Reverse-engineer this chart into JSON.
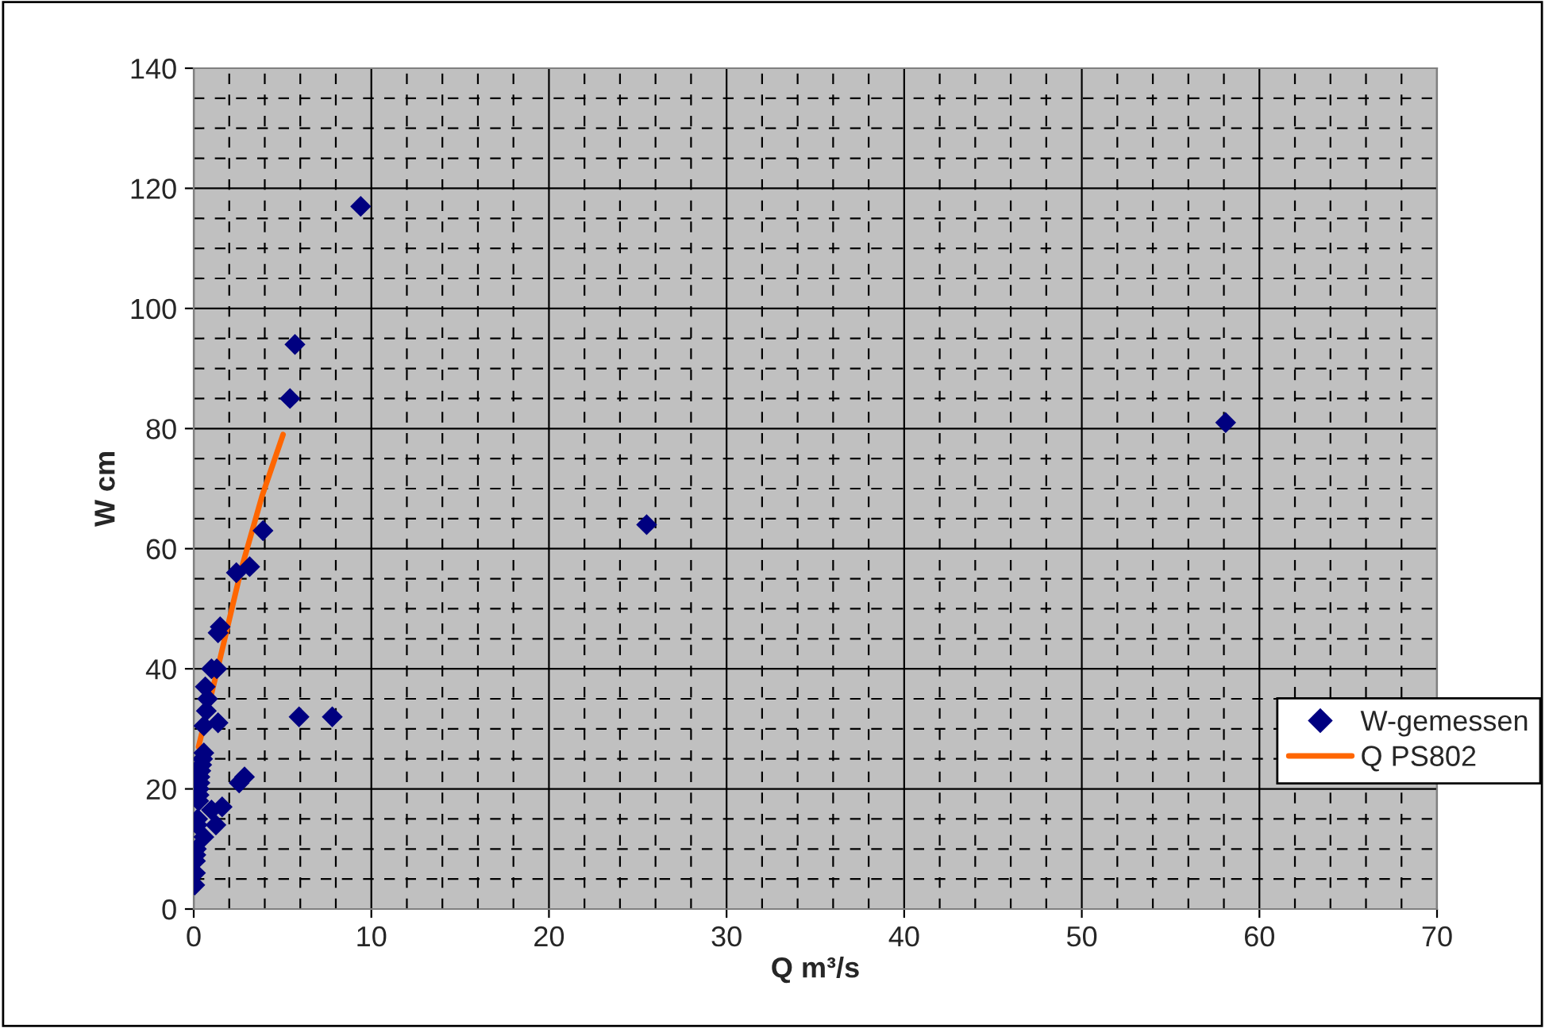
{
  "chart_data": {
    "type": "scatter",
    "xlabel": "Q m³/s",
    "ylabel": "W cm",
    "xlim": [
      0,
      70
    ],
    "xticks": [
      0,
      10,
      20,
      30,
      40,
      50,
      60,
      70
    ],
    "ylim": [
      0,
      140
    ],
    "yticks": [
      0,
      20,
      40,
      60,
      80,
      100,
      120,
      140
    ],
    "grid": true,
    "legend": "right",
    "series": [
      {
        "name": "W-gemessen",
        "marker": "diamond",
        "color": "#000080",
        "x": [
          0.06,
          0.1,
          0.1,
          0.12,
          0.15,
          0.2,
          0.22,
          0.28,
          0.3,
          0.3,
          0.35,
          0.35,
          0.4,
          0.45,
          0.5,
          0.57,
          0.65,
          0.71,
          0.78,
          0.57,
          1.0,
          1.3,
          1.37,
          1.37,
          1.49,
          2.4,
          3.15,
          3.9,
          5.42,
          5.7,
          9.4,
          5.93,
          7.8,
          2.86,
          2.56,
          1.6,
          1.25,
          1.0,
          0.57,
          25.5,
          58.1
        ],
        "values": [
          4,
          6,
          8,
          9,
          10,
          14,
          15,
          18,
          19,
          20,
          21,
          22,
          23,
          24,
          25,
          26,
          37,
          33,
          35,
          30.5,
          40,
          40,
          46,
          31,
          47,
          56,
          57,
          63,
          85,
          94,
          117,
          32,
          32,
          22,
          21,
          17,
          14,
          16.5,
          12,
          64,
          81
        ]
      },
      {
        "name": "Q PS802",
        "type": "line",
        "marker": "none",
        "line_style": "solid",
        "color": "#ff6600",
        "x": [
          0.27,
          1.46,
          2.65,
          3.84,
          5.03
        ],
        "values": [
          27,
          41.4,
          56.3,
          68.7,
          79
        ]
      }
    ]
  }
}
